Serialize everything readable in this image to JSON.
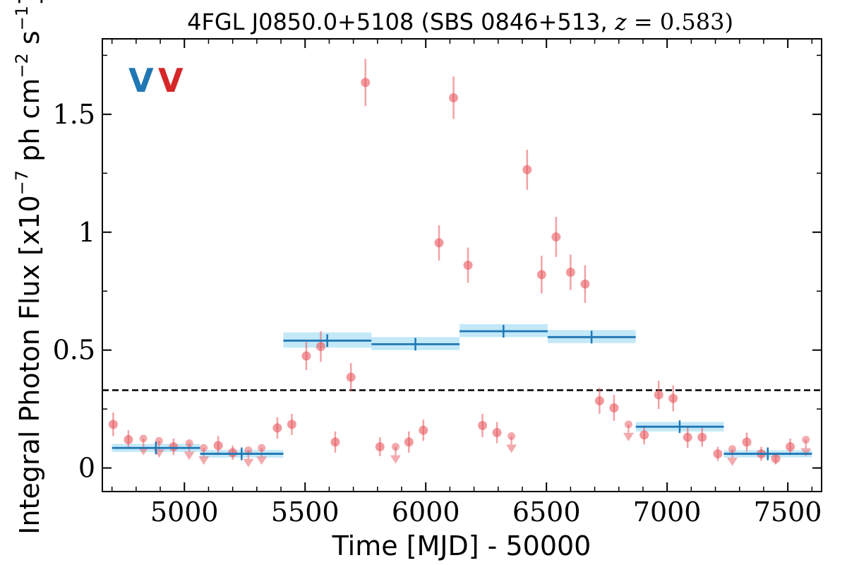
{
  "colors": {
    "red_points": "#e8575e",
    "blue_line": "#1f77b4",
    "blue_band": "#a9def5",
    "legend_blue": "#1f77b4",
    "legend_red": "#d62728"
  },
  "chart_data": {
    "type": "scatter",
    "title_main": "4FGL J0850.0+5108 (SBS 0846+513, ",
    "title_z": "z",
    "title_eq": " = 0.583)",
    "xlabel": "Time [MJD] - 50000",
    "ylabel_main": "Integral Photon Flux [x10",
    "ylabel_sup1": "−7",
    "ylabel_mid": " ph cm",
    "ylabel_sup2": "−2",
    "ylabel_end": " s",
    "ylabel_sup3": "−1",
    "ylabel_close": "]",
    "legend": {
      "blue": "V",
      "red": "V"
    },
    "xlim": [
      4660,
      7640
    ],
    "ylim": [
      -0.1,
      1.82
    ],
    "xticks": [
      {
        "v": 5000,
        "label": "5000"
      },
      {
        "v": 5500,
        "label": "5500"
      },
      {
        "v": 6000,
        "label": "6000"
      },
      {
        "v": 6500,
        "label": "6500"
      },
      {
        "v": 7000,
        "label": "7000"
      },
      {
        "v": 7500,
        "label": "7500"
      }
    ],
    "yticks": [
      {
        "v": 0,
        "label": "0"
      },
      {
        "v": 0.5,
        "label": "0.5"
      },
      {
        "v": 1.0,
        "label": "1"
      },
      {
        "v": 1.5,
        "label": "1.5"
      }
    ],
    "reference_line": 0.33,
    "blocks": [
      {
        "x0": 4700,
        "x1": 5065,
        "xc": 4882,
        "y": 0.085,
        "band": [
          0.068,
          0.102
        ]
      },
      {
        "x0": 5065,
        "x1": 5410,
        "xc": 5237,
        "y": 0.06,
        "band": [
          0.044,
          0.076
        ]
      },
      {
        "x0": 5410,
        "x1": 5775,
        "xc": 5592,
        "y": 0.54,
        "band": [
          0.51,
          0.575
        ]
      },
      {
        "x0": 5775,
        "x1": 6140,
        "xc": 5957,
        "y": 0.525,
        "band": [
          0.5,
          0.555
        ]
      },
      {
        "x0": 6140,
        "x1": 6505,
        "xc": 6322,
        "y": 0.58,
        "band": [
          0.555,
          0.61
        ]
      },
      {
        "x0": 6505,
        "x1": 6870,
        "xc": 6687,
        "y": 0.555,
        "band": [
          0.53,
          0.585
        ]
      },
      {
        "x0": 6870,
        "x1": 7235,
        "xc": 7052,
        "y": 0.175,
        "band": [
          0.155,
          0.195
        ]
      },
      {
        "x0": 7235,
        "x1": 7600,
        "xc": 7417,
        "y": 0.06,
        "band": [
          0.045,
          0.075
        ]
      }
    ],
    "points": [
      {
        "x": 4705,
        "y": 0.185,
        "err": 0.05
      },
      {
        "x": 4768,
        "y": 0.12,
        "err": 0.04
      },
      {
        "x": 4955,
        "y": 0.09,
        "err": 0.035
      },
      {
        "x": 5140,
        "y": 0.095,
        "err": 0.04
      },
      {
        "x": 5200,
        "y": 0.065,
        "err": 0.03
      },
      {
        "x": 5385,
        "y": 0.17,
        "err": 0.045
      },
      {
        "x": 5445,
        "y": 0.185,
        "err": 0.045
      },
      {
        "x": 5505,
        "y": 0.475,
        "err": 0.06
      },
      {
        "x": 5565,
        "y": 0.515,
        "err": 0.065
      },
      {
        "x": 5625,
        "y": 0.11,
        "err": 0.045
      },
      {
        "x": 5690,
        "y": 0.385,
        "err": 0.06
      },
      {
        "x": 5750,
        "y": 1.635,
        "err": 0.1
      },
      {
        "x": 5810,
        "y": 0.09,
        "err": 0.04
      },
      {
        "x": 5930,
        "y": 0.11,
        "err": 0.045
      },
      {
        "x": 5990,
        "y": 0.16,
        "err": 0.045
      },
      {
        "x": 6055,
        "y": 0.955,
        "err": 0.075
      },
      {
        "x": 6115,
        "y": 1.57,
        "err": 0.09
      },
      {
        "x": 6175,
        "y": 0.86,
        "err": 0.075
      },
      {
        "x": 6235,
        "y": 0.18,
        "err": 0.05
      },
      {
        "x": 6295,
        "y": 0.15,
        "err": 0.045
      },
      {
        "x": 6420,
        "y": 1.265,
        "err": 0.085
      },
      {
        "x": 6480,
        "y": 0.82,
        "err": 0.08
      },
      {
        "x": 6540,
        "y": 0.98,
        "err": 0.085
      },
      {
        "x": 6600,
        "y": 0.83,
        "err": 0.075
      },
      {
        "x": 6660,
        "y": 0.78,
        "err": 0.08
      },
      {
        "x": 6720,
        "y": 0.285,
        "err": 0.055
      },
      {
        "x": 6780,
        "y": 0.255,
        "err": 0.055
      },
      {
        "x": 6905,
        "y": 0.14,
        "err": 0.04
      },
      {
        "x": 6965,
        "y": 0.31,
        "err": 0.06
      },
      {
        "x": 7025,
        "y": 0.295,
        "err": 0.055
      },
      {
        "x": 7085,
        "y": 0.13,
        "err": 0.045
      },
      {
        "x": 7145,
        "y": 0.13,
        "err": 0.04
      },
      {
        "x": 7210,
        "y": 0.06,
        "err": 0.03
      },
      {
        "x": 7330,
        "y": 0.11,
        "err": 0.04
      },
      {
        "x": 7390,
        "y": 0.06,
        "err": 0.03
      },
      {
        "x": 7450,
        "y": 0.04,
        "err": 0.025
      },
      {
        "x": 7510,
        "y": 0.09,
        "err": 0.035
      }
    ],
    "upper_limits": [
      {
        "x": 4830,
        "y": 0.125
      },
      {
        "x": 4895,
        "y": 0.115
      },
      {
        "x": 5020,
        "y": 0.105
      },
      {
        "x": 5080,
        "y": 0.085
      },
      {
        "x": 5265,
        "y": 0.075
      },
      {
        "x": 5320,
        "y": 0.085
      },
      {
        "x": 5875,
        "y": 0.09
      },
      {
        "x": 6355,
        "y": 0.135
      },
      {
        "x": 6840,
        "y": 0.185
      },
      {
        "x": 7270,
        "y": 0.08
      },
      {
        "x": 7575,
        "y": 0.12
      }
    ]
  }
}
